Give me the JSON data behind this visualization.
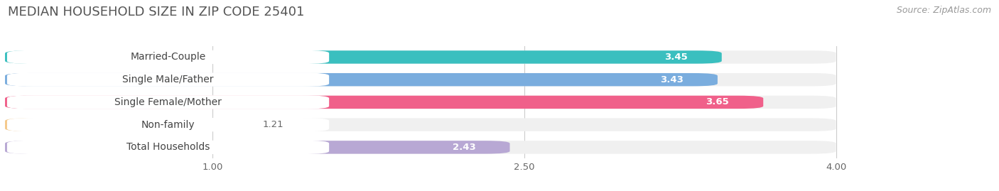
{
  "title": "MEDIAN HOUSEHOLD SIZE IN ZIP CODE 25401",
  "source": "Source: ZipAtlas.com",
  "categories": [
    "Married-Couple",
    "Single Male/Father",
    "Single Female/Mother",
    "Non-family",
    "Total Households"
  ],
  "values": [
    3.45,
    3.43,
    3.65,
    1.21,
    2.43
  ],
  "bar_colors": [
    "#3abfbf",
    "#7aadde",
    "#f0608a",
    "#f5c98a",
    "#b8a8d4"
  ],
  "xlim": [
    0,
    4.4
  ],
  "xmin": 0.0,
  "xmax": 4.0,
  "xticks": [
    1.0,
    2.5,
    4.0
  ],
  "bg_color": "#ffffff",
  "row_bg_color": "#f0f0f0",
  "title_fontsize": 13,
  "source_fontsize": 9,
  "label_fontsize": 10,
  "value_fontsize": 9.5
}
